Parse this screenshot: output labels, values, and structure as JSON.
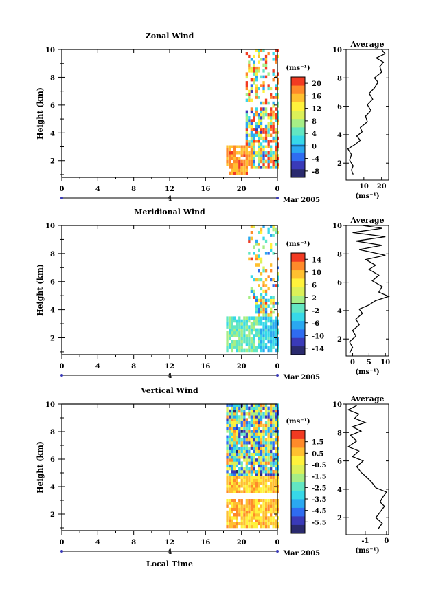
{
  "chart_data": [
    {
      "type": "heatmap",
      "title": "Zonal Wind",
      "ylabel": "Height (km)",
      "xticks": [
        "0",
        "4",
        "8",
        "12",
        "16",
        "20",
        "0"
      ],
      "yticks": [
        "2",
        "4",
        "6",
        "8",
        "10"
      ],
      "ylim": [
        0.8,
        10
      ],
      "day_label": "4",
      "date_label": "Mar 2005",
      "colorbar": {
        "unit": "(ms⁻¹)",
        "ticks": [
          "20",
          "16",
          "12",
          "8",
          "4",
          "0",
          "-4",
          "-8"
        ],
        "values": [
          20,
          16,
          12,
          8,
          4,
          0,
          -4,
          -8
        ],
        "range": [
          -10,
          22
        ]
      },
      "avg": {
        "title": "Average",
        "xlabel": "(ms⁻¹)",
        "xticks": [
          "10",
          "20"
        ],
        "xtick_values": [
          10,
          20
        ],
        "xlim": [
          0,
          24
        ],
        "yticks": [
          "2",
          "4",
          "6",
          "8",
          "10"
        ],
        "profile": [
          [
            4,
            1.2
          ],
          [
            3,
            1.5
          ],
          [
            4,
            1.8
          ],
          [
            2,
            2.2
          ],
          [
            3,
            2.6
          ],
          [
            1,
            3.0
          ],
          [
            5,
            3.3
          ],
          [
            8,
            3.6
          ],
          [
            6,
            3.9
          ],
          [
            9,
            4.2
          ],
          [
            8,
            4.5
          ],
          [
            12,
            4.9
          ],
          [
            11,
            5.3
          ],
          [
            14,
            5.7
          ],
          [
            12,
            6.1
          ],
          [
            15,
            6.5
          ],
          [
            13,
            6.9
          ],
          [
            16,
            7.3
          ],
          [
            18,
            7.7
          ],
          [
            16,
            8.0
          ],
          [
            20,
            8.4
          ],
          [
            19,
            8.8
          ],
          [
            21,
            9.1
          ],
          [
            17,
            9.4
          ],
          [
            22,
            9.7
          ],
          [
            20,
            10.0
          ]
        ]
      }
    },
    {
      "type": "heatmap",
      "title": "Meridional Wind",
      "ylabel": "Height (km)",
      "xticks": [
        "0",
        "4",
        "8",
        "12",
        "16",
        "20",
        "0"
      ],
      "yticks": [
        "2",
        "4",
        "6",
        "8",
        "10"
      ],
      "ylim": [
        0.8,
        10
      ],
      "day_label": "4",
      "date_label": "Mar 2005",
      "colorbar": {
        "unit": "(ms⁻¹)",
        "ticks": [
          "14",
          "10",
          "6",
          "2",
          "-2",
          "-6",
          "-10",
          "-14"
        ],
        "values": [
          14,
          10,
          6,
          2,
          -2,
          -6,
          -10,
          -14
        ],
        "range": [
          -16,
          16
        ]
      },
      "avg": {
        "title": "Average",
        "xlabel": "(ms⁻¹)",
        "xticks": [
          "0",
          "5",
          "10"
        ],
        "xtick_values": [
          0,
          5,
          10
        ],
        "xlim": [
          -2,
          11
        ],
        "yticks": [
          "2",
          "4",
          "6",
          "8",
          "10"
        ],
        "profile": [
          [
            -1,
            1.0
          ],
          [
            0,
            1.4
          ],
          [
            -1,
            1.8
          ],
          [
            1,
            2.2
          ],
          [
            0,
            2.6
          ],
          [
            2,
            3.0
          ],
          [
            1,
            3.4
          ],
          [
            3,
            3.8
          ],
          [
            2,
            4.1
          ],
          [
            5,
            4.4
          ],
          [
            7,
            4.7
          ],
          [
            11,
            5.0
          ],
          [
            8,
            5.3
          ],
          [
            9,
            5.7
          ],
          [
            6,
            6.1
          ],
          [
            8,
            6.5
          ],
          [
            5,
            6.9
          ],
          [
            7,
            7.2
          ],
          [
            4,
            7.6
          ],
          [
            10,
            7.9
          ],
          [
            2,
            8.3
          ],
          [
            9,
            8.6
          ],
          [
            1,
            8.9
          ],
          [
            10,
            9.2
          ],
          [
            0,
            9.5
          ],
          [
            9,
            9.8
          ],
          [
            3,
            10.0
          ]
        ]
      }
    },
    {
      "type": "heatmap",
      "title": "Vertical Wind",
      "xlabel": "Local Time",
      "ylabel": "Height (km)",
      "xticks": [
        "0",
        "4",
        "8",
        "12",
        "16",
        "20",
        "0"
      ],
      "yticks": [
        "2",
        "4",
        "6",
        "8",
        "10"
      ],
      "ylim": [
        0.8,
        10
      ],
      "day_label": "4",
      "date_label": "Mar 2005",
      "colorbar": {
        "unit": "(ms⁻¹)",
        "ticks": [
          "1.5",
          "0.5",
          "-0.5",
          "-1.5",
          "-2.5",
          "-3.5",
          "-4.5",
          "-5.5"
        ],
        "values": [
          1.5,
          0.5,
          -0.5,
          -1.5,
          -2.5,
          -3.5,
          -4.5,
          -5.5
        ],
        "range": [
          -6.5,
          2.5
        ]
      },
      "avg": {
        "title": "Average",
        "xlabel": "(ms⁻¹)",
        "xticks": [
          "-1",
          "0"
        ],
        "xtick_values": [
          -1,
          0
        ],
        "xlim": [
          -1.9,
          0.1
        ],
        "yticks": [
          "2",
          "4",
          "6",
          "8",
          "10"
        ],
        "profile": [
          [
            -0.4,
            1.2
          ],
          [
            -0.2,
            1.6
          ],
          [
            -0.5,
            2.0
          ],
          [
            -0.3,
            2.4
          ],
          [
            -0.1,
            2.8
          ],
          [
            -0.3,
            3.1
          ],
          [
            -0.2,
            3.4
          ],
          [
            0.0,
            3.8
          ],
          [
            -0.5,
            4.1
          ],
          [
            -0.7,
            4.5
          ],
          [
            -0.9,
            4.8
          ],
          [
            -1.2,
            5.2
          ],
          [
            -1.4,
            5.6
          ],
          [
            -1.1,
            6.0
          ],
          [
            -1.6,
            6.3
          ],
          [
            -1.3,
            6.7
          ],
          [
            -1.8,
            7.0
          ],
          [
            -1.4,
            7.4
          ],
          [
            -1.7,
            7.8
          ],
          [
            -1.2,
            8.1
          ],
          [
            -1.6,
            8.4
          ],
          [
            -1.0,
            8.7
          ],
          [
            -1.5,
            9.0
          ],
          [
            -1.3,
            9.3
          ],
          [
            -1.8,
            9.6
          ],
          [
            -1.4,
            9.9
          ]
        ]
      }
    }
  ]
}
